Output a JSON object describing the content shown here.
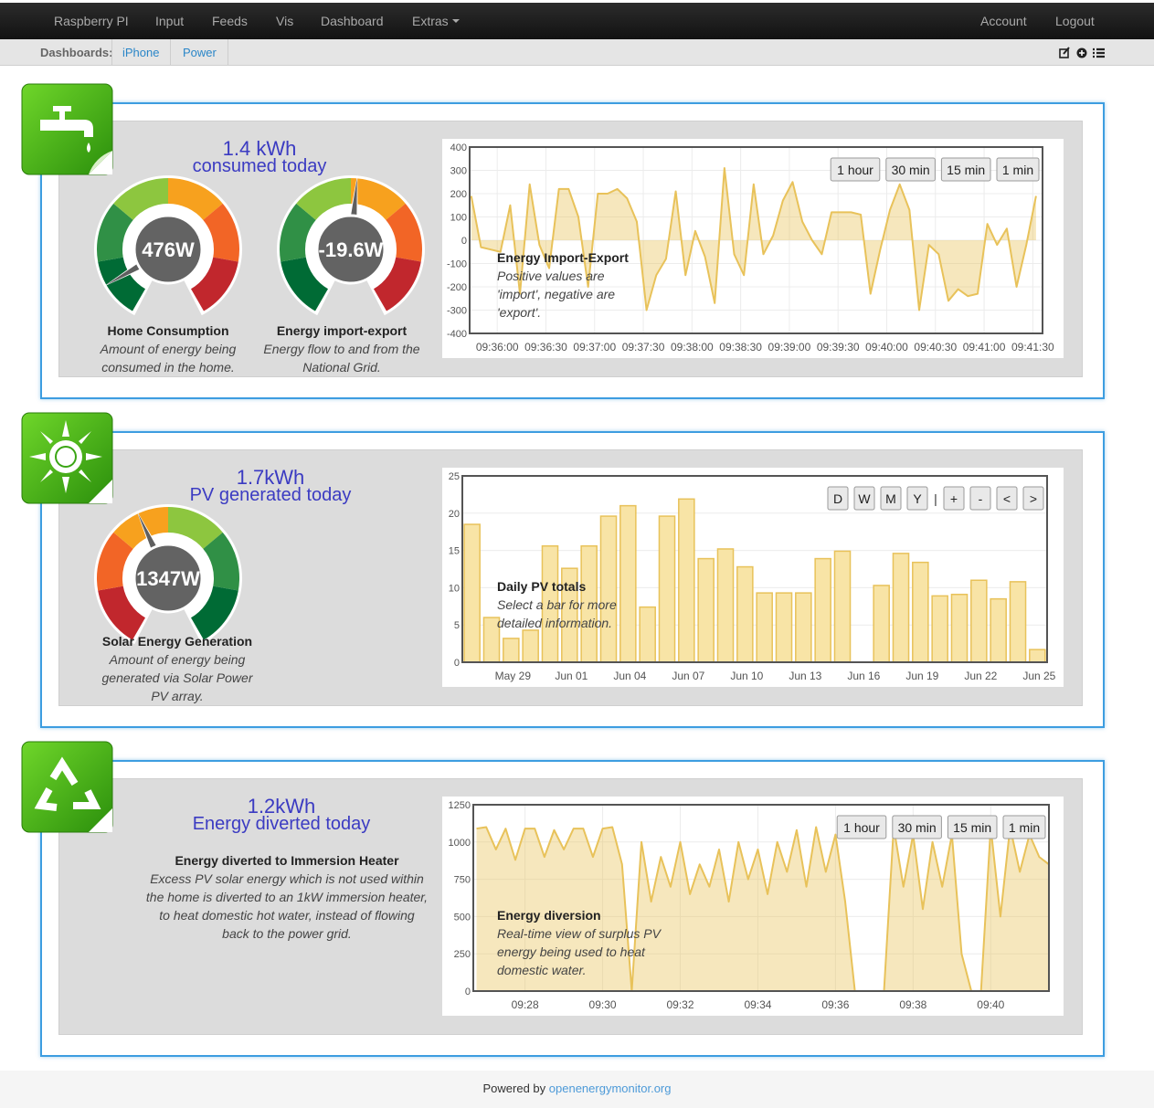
{
  "nav": {
    "brand": "Raspberry PI",
    "items": [
      "Input",
      "Feeds",
      "Vis",
      "Dashboard",
      "Extras"
    ],
    "right": [
      "Account",
      "Logout"
    ]
  },
  "dashboards": {
    "label": "Dashboards:",
    "items": [
      "iPhone",
      "Power"
    ]
  },
  "panels": [
    {
      "heading": "1.4 kWh",
      "subheading": "consumed today",
      "gauges": [
        {
          "value_label": "476W",
          "title": "Home Consumption",
          "description": "Amount of energy being consumed in the home."
        },
        {
          "value_label": "-19.6W",
          "title": "Energy import-export",
          "description": "Energy flow to and from the National Grid."
        }
      ]
    },
    {
      "heading": "1.7kWh",
      "subheading": "PV generated today",
      "gauges": [
        {
          "value_label": "1347W",
          "title": "Solar Energy Generation",
          "description": "Amount of energy being generated via Solar Power PV array."
        }
      ]
    },
    {
      "heading": "1.2kWh",
      "subheading": "Energy diverted today",
      "info_title": "Energy diverted to Immersion Heater",
      "description": "Excess PV solar energy which is not used within the home is diverted to an 1kW immersion heater, to heat domestic hot water, instead of flowing back to the power grid."
    }
  ],
  "chart_data": [
    {
      "type": "line",
      "color": "#e8c25a",
      "grid": true,
      "annotation": {
        "title": "Energy Import-Export",
        "lines": [
          "Positive values are",
          "'import', negative are",
          "'export'."
        ]
      },
      "buttons": [
        "1 hour",
        "30 min",
        "15 min",
        "1 min"
      ],
      "x": [
        "09:35:44",
        "09:35:50",
        "09:35:56",
        "09:36:02",
        "09:36:08",
        "09:36:14",
        "09:36:20",
        "09:36:26",
        "09:36:32",
        "09:36:38",
        "09:36:44",
        "09:36:50",
        "09:36:56",
        "09:37:02",
        "09:37:08",
        "09:37:14",
        "09:37:20",
        "09:37:26",
        "09:37:32",
        "09:37:38",
        "09:37:44",
        "09:37:50",
        "09:37:56",
        "09:38:02",
        "09:38:08",
        "09:38:14",
        "09:38:20",
        "09:38:26",
        "09:38:32",
        "09:38:38",
        "09:38:44",
        "09:38:50",
        "09:38:56",
        "09:39:02",
        "09:39:08",
        "09:39:14",
        "09:39:20",
        "09:39:26",
        "09:39:32",
        "09:39:38",
        "09:39:44",
        "09:39:50",
        "09:39:56",
        "09:40:02",
        "09:40:08",
        "09:40:14",
        "09:40:20",
        "09:40:26",
        "09:40:32",
        "09:40:38",
        "09:40:44",
        "09:40:50",
        "09:40:56",
        "09:41:02",
        "09:41:08",
        "09:41:14",
        "09:41:20",
        "09:41:26",
        "09:41:32"
      ],
      "values": [
        190,
        -30,
        -40,
        -50,
        150,
        -230,
        240,
        -20,
        -120,
        220,
        220,
        100,
        -200,
        200,
        200,
        220,
        180,
        80,
        -300,
        -150,
        -80,
        210,
        -150,
        40,
        -70,
        -270,
        310,
        -60,
        -150,
        240,
        -60,
        20,
        170,
        250,
        80,
        0,
        -60,
        120,
        120,
        120,
        110,
        -230,
        -40,
        130,
        240,
        130,
        -300,
        -20,
        -60,
        -260,
        -210,
        -240,
        -230,
        70,
        -20,
        50,
        -200,
        -20,
        190
      ],
      "xlim": [
        "09:35:43",
        "09:41:36"
      ],
      "xticks": [
        "09:36:00",
        "09:36:30",
        "09:37:00",
        "09:37:30",
        "09:38:00",
        "09:38:30",
        "09:39:00",
        "09:39:30",
        "09:40:00",
        "09:40:30",
        "09:41:00",
        "09:41:30"
      ],
      "ylim": [
        -400,
        400
      ],
      "yticks": [
        -400,
        -300,
        -200,
        -100,
        0,
        100,
        200,
        300,
        400
      ]
    },
    {
      "type": "bar",
      "color": "#f8e4a6",
      "edge_color": "#e8c25a",
      "grid": true,
      "annotation": {
        "title": "Daily PV totals",
        "lines": [
          "Select a bar for more",
          "detailed information."
        ]
      },
      "buttons": [
        "D",
        "W",
        "M",
        "Y",
        "|",
        "+",
        "-",
        "<",
        ">"
      ],
      "categories": [
        null,
        null,
        "May 29",
        null,
        null,
        "Jun 01",
        null,
        null,
        "Jun 04",
        null,
        null,
        "Jun 07",
        null,
        null,
        "Jun 10",
        null,
        null,
        "Jun 13",
        null,
        null,
        "Jun 16",
        null,
        null,
        "Jun 19",
        null,
        null,
        "Jun 22",
        null,
        null,
        "Jun 25"
      ],
      "values": [
        18.5,
        6,
        3.2,
        4.3,
        15.6,
        12.6,
        15.6,
        19.6,
        21,
        7.4,
        19.6,
        21.9,
        13.9,
        15.2,
        12.8,
        9.3,
        9.3,
        9.3,
        13.9,
        14.9,
        null,
        10.3,
        14.6,
        13.4,
        8.9,
        9.1,
        11,
        8.5,
        10.8,
        1.7
      ],
      "ylim": [
        0,
        25
      ],
      "yticks": [
        0,
        5,
        10,
        15,
        20,
        25
      ]
    },
    {
      "type": "line",
      "color": "#e8c25a",
      "grid": true,
      "annotation": {
        "title": "Energy diversion",
        "lines": [
          "Real-time view of surplus PV",
          "energy being used to heat",
          "domestic water."
        ]
      },
      "buttons": [
        "1 hour",
        "30 min",
        "15 min",
        "1 min"
      ],
      "x": [
        "09:26:45",
        "09:27:00",
        "09:27:15",
        "09:27:30",
        "09:27:45",
        "09:28:00",
        "09:28:15",
        "09:28:30",
        "09:28:45",
        "09:29:00",
        "09:29:15",
        "09:29:30",
        "09:29:45",
        "09:30:00",
        "09:30:15",
        "09:30:30",
        "09:30:45",
        "09:31:00",
        "09:31:15",
        "09:31:30",
        "09:31:45",
        "09:32:00",
        "09:32:15",
        "09:32:30",
        "09:32:45",
        "09:33:00",
        "09:33:15",
        "09:33:30",
        "09:33:45",
        "09:34:00",
        "09:34:15",
        "09:34:30",
        "09:34:45",
        "09:35:00",
        "09:35:15",
        "09:35:30",
        "09:35:45",
        "09:36:00",
        "09:36:15",
        "09:36:30",
        "09:36:45",
        "09:37:00",
        "09:37:15",
        "09:37:30",
        "09:37:45",
        "09:38:00",
        "09:38:15",
        "09:38:30",
        "09:38:45",
        "09:39:00",
        "09:39:15",
        "09:39:30",
        "09:39:45",
        "09:40:00",
        "09:40:15",
        "09:40:30",
        "09:40:45",
        "09:41:00",
        "09:41:15",
        "09:41:30"
      ],
      "values": [
        1090,
        1100,
        950,
        1090,
        880,
        1090,
        1090,
        900,
        1080,
        950,
        1090,
        1090,
        900,
        1090,
        1100,
        850,
        0,
        1000,
        600,
        900,
        700,
        1000,
        650,
        850,
        700,
        950,
        600,
        1000,
        750,
        950,
        650,
        1000,
        800,
        1080,
        700,
        1100,
        800,
        1050,
        600,
        0,
        0,
        0,
        0,
        1100,
        700,
        1050,
        550,
        1000,
        700,
        1050,
        250,
        0,
        0,
        1100,
        500,
        1100,
        800,
        1050,
        900,
        850
      ],
      "xlim": [
        "09:26:40",
        "09:41:30"
      ],
      "xticks": [
        "09:28",
        "09:30",
        "09:32",
        "09:34",
        "09:36",
        "09:38",
        "09:40"
      ],
      "ylim": [
        0,
        1250
      ],
      "yticks": [
        0,
        250,
        500,
        750,
        1000,
        1250
      ]
    }
  ],
  "footer": {
    "text": "Powered by",
    "link": "openenergymonitor.org"
  }
}
